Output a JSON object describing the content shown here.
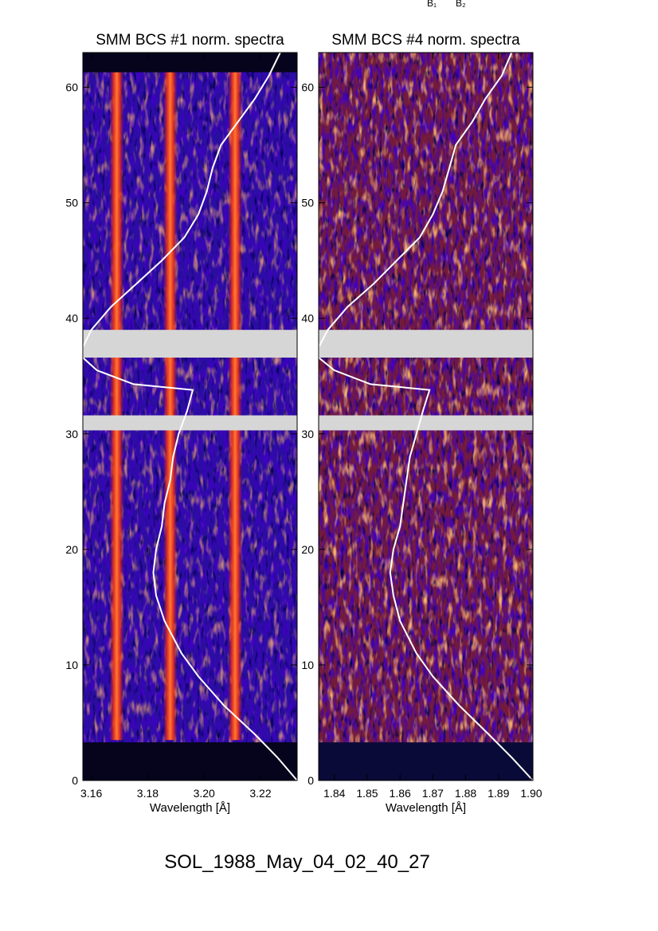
{
  "top_labels": [
    "B₁",
    "B₂"
  ],
  "footer": "SOL_1988_May_04_02_40_27",
  "chart_data": [
    {
      "type": "heatmap",
      "title": "SMM BCS #1 norm. spectra",
      "xlabel": "Wavelength [Å]",
      "xlim": [
        3.157,
        3.233
      ],
      "ylim": [
        0,
        63
      ],
      "xticks": [
        3.16,
        3.18,
        3.2,
        3.22
      ],
      "xtick_labels": [
        "3.16",
        "3.18",
        "3.20",
        "3.22"
      ],
      "yticks": [
        0,
        10,
        20,
        30,
        40,
        50,
        60
      ],
      "ytick_labels": [
        "0",
        "10",
        "20",
        "30",
        "40",
        "50",
        "60"
      ],
      "data_gaps_y": [
        [
          36.6,
          39.0
        ],
        [
          30.3,
          31.6
        ]
      ],
      "emission_lines_x": [
        3.169,
        3.188,
        3.211
      ],
      "lightcurve": {
        "color": "#ffffff",
        "points": [
          [
            3.233,
            0.0
          ],
          [
            3.226,
            2.0
          ],
          [
            3.218,
            4.0
          ],
          [
            3.207,
            6.5
          ],
          [
            3.198,
            9.0
          ],
          [
            3.192,
            11.0
          ],
          [
            3.186,
            13.8
          ],
          [
            3.183,
            16.0
          ],
          [
            3.182,
            18.0
          ],
          [
            3.183,
            20.0
          ],
          [
            3.185,
            22.0
          ],
          [
            3.186,
            24.0
          ],
          [
            3.188,
            26.0
          ],
          [
            3.189,
            28.0
          ],
          [
            3.191,
            30.0
          ],
          [
            3.194,
            32.0
          ],
          [
            3.196,
            33.8
          ],
          [
            3.175,
            34.3
          ],
          [
            3.162,
            35.5
          ],
          [
            3.157,
            36.6
          ],
          [
            3.157,
            37.5
          ],
          [
            3.16,
            39.0
          ],
          [
            3.167,
            41.0
          ],
          [
            3.176,
            43.0
          ],
          [
            3.185,
            45.0
          ],
          [
            3.193,
            47.0
          ],
          [
            3.198,
            49.0
          ],
          [
            3.201,
            51.0
          ],
          [
            3.203,
            53.0
          ],
          [
            3.206,
            55.0
          ],
          [
            3.212,
            57.0
          ],
          [
            3.218,
            59.0
          ],
          [
            3.223,
            61.0
          ],
          [
            3.227,
            63.0
          ]
        ]
      }
    },
    {
      "type": "heatmap",
      "title": "SMM BCS #4 norm. spectra",
      "xlabel": "Wavelength [Å]",
      "xlim": [
        1.8352,
        1.9005
      ],
      "ylim": [
        0,
        63
      ],
      "xticks": [
        1.84,
        1.85,
        1.86,
        1.87,
        1.88,
        1.89,
        1.9
      ],
      "xtick_labels": [
        "1.84",
        "1.85",
        "1.86",
        "1.87",
        "1.88",
        "1.89",
        "1.90"
      ],
      "yticks": [
        0,
        10,
        20,
        30,
        40,
        50,
        60
      ],
      "ytick_labels": [
        "0",
        "10",
        "20",
        "30",
        "40",
        "50",
        "60"
      ],
      "data_gaps_y": [
        [
          36.6,
          39.0
        ],
        [
          30.3,
          31.6
        ]
      ],
      "lightcurve": {
        "color": "#ffffff",
        "points": [
          [
            1.9005,
            0.0
          ],
          [
            1.894,
            2.0
          ],
          [
            1.887,
            4.0
          ],
          [
            1.878,
            6.5
          ],
          [
            1.87,
            9.0
          ],
          [
            1.865,
            11.0
          ],
          [
            1.86,
            13.8
          ],
          [
            1.858,
            16.0
          ],
          [
            1.857,
            18.0
          ],
          [
            1.858,
            20.0
          ],
          [
            1.86,
            22.0
          ],
          [
            1.861,
            24.0
          ],
          [
            1.862,
            26.0
          ],
          [
            1.863,
            28.0
          ],
          [
            1.865,
            30.0
          ],
          [
            1.867,
            32.0
          ],
          [
            1.869,
            33.8
          ],
          [
            1.851,
            34.3
          ],
          [
            1.84,
            35.5
          ],
          [
            1.8352,
            36.6
          ],
          [
            1.8352,
            37.5
          ],
          [
            1.838,
            39.0
          ],
          [
            1.844,
            41.0
          ],
          [
            1.852,
            43.0
          ],
          [
            1.859,
            45.0
          ],
          [
            1.866,
            47.0
          ],
          [
            1.87,
            49.0
          ],
          [
            1.873,
            51.0
          ],
          [
            1.875,
            53.0
          ],
          [
            1.877,
            55.0
          ],
          [
            1.882,
            57.0
          ],
          [
            1.886,
            59.0
          ],
          [
            1.891,
            61.0
          ],
          [
            1.894,
            63.0
          ]
        ]
      }
    }
  ]
}
